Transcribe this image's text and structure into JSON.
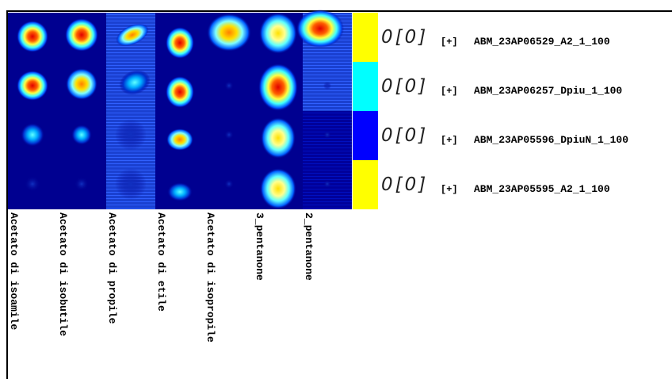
{
  "columns": [
    "Acetato di isoamile",
    "Acetato di isobutile",
    "Acetato di propile",
    "Acetato di etile",
    "Acetato di isopropile",
    "3_pentanone",
    "2_pentanone"
  ],
  "rows": [
    {
      "score": "0[0]",
      "toggle": "[+]",
      "name": "ABM_23AP06529_A2_1_100",
      "color": "#ffff00"
    },
    {
      "score": "0[0]",
      "toggle": "[+]",
      "name": "ABM_23AP06257_Dpiu_1_100",
      "color": "#00ffff"
    },
    {
      "score": "0[0]",
      "toggle": "[+]",
      "name": "ABM_23AP05596_DpiuN_1_100",
      "color": "#0000ff"
    },
    {
      "score": "0[0]",
      "toggle": "[+]",
      "name": "ABM_23AP05595_A2_1_100",
      "color": "#ffff00"
    }
  ]
}
